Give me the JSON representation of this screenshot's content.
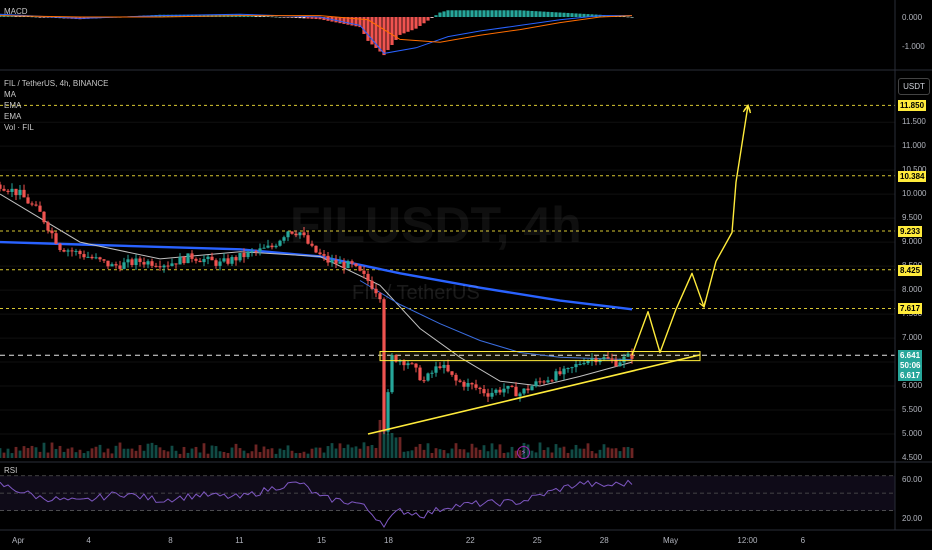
{
  "pane": {
    "symbol_label": "FIL / TetherUS, 4h, BINANCE",
    "indicators": [
      "MA",
      "EMA",
      "EMA",
      "Vol · FIL"
    ],
    "watermark_main": "FILUSDT, 4h",
    "watermark_sub": "FIL / TetherUS",
    "unit": "USDT"
  },
  "macd": {
    "label": "MACD",
    "ticks": [
      "0.000",
      "-1.000"
    ]
  },
  "rsi": {
    "label": "RSI",
    "ticks": [
      "60.00",
      "20.00"
    ]
  },
  "colors": {
    "up": "#26a69a",
    "down": "#ef5350",
    "ma": "#c0c0c0",
    "ema_fast": "#3a6de0",
    "ema_slow": "#2962ff",
    "projection": "#ffeb3b",
    "rsi": "#7e57c2",
    "current_price": "#26a69a"
  },
  "chart_data": {
    "type": "candlestick",
    "price_axis_ticks": [
      "11.500",
      "11.000",
      "10.500",
      "10.000",
      "9.500",
      "9.000",
      "8.500",
      "8.000",
      "7.500",
      "7.000",
      "6.500",
      "6.000",
      "5.500",
      "5.000",
      "4.500"
    ],
    "time_axis_ticks": [
      "Apr",
      "4",
      "8",
      "11",
      "15",
      "18",
      "22",
      "25",
      "28",
      "May",
      "12:00",
      "6"
    ],
    "ylim": [
      4.5,
      11.9
    ],
    "horizontal_levels": [
      11.85,
      10.384,
      9.233,
      8.425,
      7.617,
      6.641
    ],
    "price_tags": [
      {
        "text": "11.850",
        "value": 11.85
      },
      {
        "text": "10.384",
        "value": 10.384
      },
      {
        "text": "9.233",
        "value": 9.233
      },
      {
        "text": "8.425",
        "value": 8.425
      },
      {
        "text": "7.617",
        "value": 7.617
      }
    ],
    "current_price": {
      "text": "6.641",
      "countdown": "50:06",
      "value": 6.641
    },
    "second_price": {
      "text": "6.617",
      "value": 6.617
    },
    "price_path": [
      [
        0,
        10.2
      ],
      [
        5,
        10.0
      ],
      [
        10,
        9.6
      ],
      [
        15,
        8.9
      ],
      [
        22,
        8.7
      ],
      [
        28,
        8.5
      ],
      [
        35,
        8.6
      ],
      [
        42,
        8.55
      ],
      [
        48,
        8.7
      ],
      [
        55,
        8.55
      ],
      [
        62,
        8.75
      ],
      [
        68,
        8.9
      ],
      [
        72,
        9.25
      ],
      [
        75,
        9.2
      ],
      [
        78,
        8.85
      ],
      [
        82,
        8.6
      ],
      [
        88,
        8.5
      ],
      [
        92,
        8.2
      ],
      [
        95,
        7.9
      ],
      [
        96,
        5.0
      ],
      [
        98,
        6.6
      ],
      [
        102,
        6.5
      ],
      [
        106,
        6.1
      ],
      [
        110,
        6.45
      ],
      [
        114,
        6.1
      ],
      [
        118,
        6.0
      ],
      [
        122,
        5.85
      ],
      [
        126,
        5.95
      ],
      [
        130,
        5.85
      ],
      [
        134,
        6.05
      ],
      [
        138,
        6.2
      ],
      [
        142,
        6.3
      ],
      [
        146,
        6.55
      ],
      [
        150,
        6.6
      ],
      [
        154,
        6.5
      ],
      [
        158,
        6.64
      ]
    ],
    "projection_path": [
      [
        158,
        6.64
      ],
      [
        162,
        7.55
      ],
      [
        165,
        6.7
      ],
      [
        169,
        7.6
      ],
      [
        173,
        8.35
      ],
      [
        176,
        7.65
      ],
      [
        179,
        8.6
      ],
      [
        183,
        9.2
      ],
      [
        184,
        10.25
      ],
      [
        187,
        11.85
      ]
    ],
    "triangle": {
      "box": [
        [
          95,
          6.53
        ],
        [
          175,
          6.72
        ]
      ],
      "support": [
        [
          92,
          5.0
        ],
        [
          175,
          6.65
        ]
      ]
    },
    "ema_slow_path": [
      [
        0,
        9.0
      ],
      [
        20,
        8.95
      ],
      [
        40,
        8.9
      ],
      [
        60,
        8.85
      ],
      [
        80,
        8.7
      ],
      [
        100,
        8.35
      ],
      [
        120,
        8.05
      ],
      [
        140,
        7.78
      ],
      [
        155,
        7.63
      ],
      [
        158,
        7.6
      ]
    ],
    "ma_path": [
      [
        0,
        10.0
      ],
      [
        20,
        9.0
      ],
      [
        40,
        8.65
      ],
      [
        60,
        8.8
      ],
      [
        80,
        8.7
      ],
      [
        95,
        8.1
      ],
      [
        105,
        7.2
      ],
      [
        115,
        6.6
      ],
      [
        125,
        6.1
      ],
      [
        135,
        6.0
      ],
      [
        145,
        6.2
      ],
      [
        158,
        6.5
      ]
    ],
    "ema_fast_path": [
      [
        90,
        8.2
      ],
      [
        100,
        7.7
      ],
      [
        110,
        7.3
      ],
      [
        120,
        6.95
      ],
      [
        130,
        6.7
      ],
      [
        140,
        6.6
      ],
      [
        158,
        6.55
      ]
    ],
    "macd_histogram_range": [
      -1.6,
      0.6
    ],
    "rsi_range": [
      10,
      80
    ]
  }
}
